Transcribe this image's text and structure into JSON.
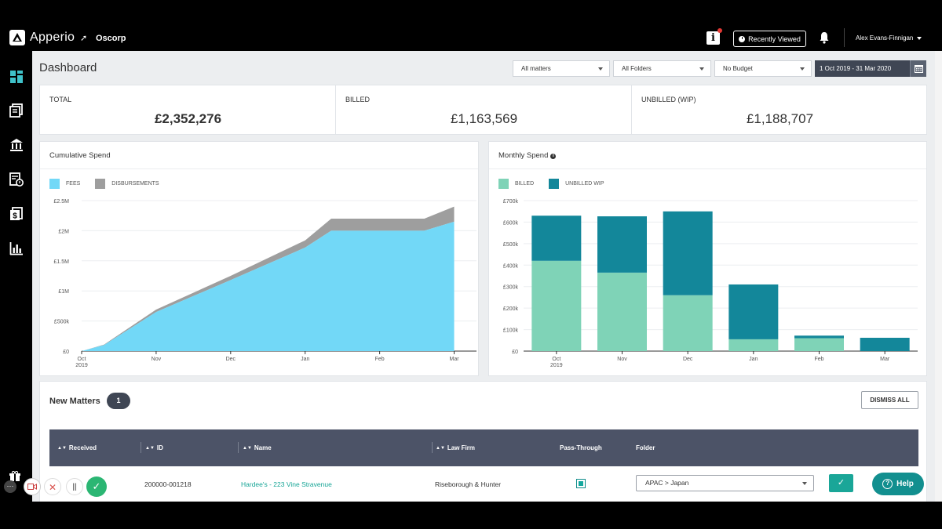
{
  "app": {
    "name": "Apperio",
    "org": "Oscorp"
  },
  "header": {
    "recently_viewed": "Recently Viewed",
    "user_name": "Alex Evans-Finnigan",
    "info_icon": "info-icon",
    "bell_icon": "bell-icon"
  },
  "sidebar": {
    "items": [
      {
        "icon": "dashboard-icon",
        "active": true
      },
      {
        "icon": "documents-icon",
        "active": false
      },
      {
        "icon": "bank-icon",
        "active": false
      },
      {
        "icon": "budget-icon",
        "active": false
      },
      {
        "icon": "invoice-icon",
        "active": false
      },
      {
        "icon": "reports-icon",
        "active": false
      }
    ]
  },
  "page": {
    "title": "Dashboard"
  },
  "filters": {
    "matters": "All matters",
    "folders": "All Folders",
    "budget": "No Budget",
    "date_range": "1 Oct 2019 - 31 Mar 2020"
  },
  "kpis": [
    {
      "label": "TOTAL",
      "value": "£2,352,276"
    },
    {
      "label": "BILLED",
      "value": "£1,163,569"
    },
    {
      "label": "UNBILLED (WIP)",
      "value": "£1,188,707"
    }
  ],
  "cumulative": {
    "title": "Cumulative Spend",
    "legend": [
      "FEES",
      "DISBURSEMENTS"
    ]
  },
  "monthly": {
    "title": "Monthly Spend",
    "legend": [
      "BILLED",
      "UNBILLED WIP"
    ]
  },
  "chart_data": [
    {
      "type": "area",
      "title": "Cumulative Spend",
      "x": [
        "Oct 2019",
        "Nov",
        "Dec",
        "Jan",
        "Feb",
        "Mar"
      ],
      "x_tick_labels": [
        "Oct",
        "Nov",
        "Dec",
        "Jan",
        "Feb",
        "Mar"
      ],
      "x_tick_sublabel": "2019",
      "y_tick_labels": [
        "£0",
        "£500k",
        "£1M",
        "£1.5M",
        "£2M",
        "£2.5M"
      ],
      "ylim": [
        0,
        2500000
      ],
      "stacked": true,
      "series": [
        {
          "name": "FEES",
          "color": "#72d8f7",
          "points": [
            [
              0,
              0
            ],
            [
              0.3,
              100000
            ],
            [
              1,
              650000
            ],
            [
              2,
              1180000
            ],
            [
              3,
              1720000
            ],
            [
              3.35,
              2000000
            ],
            [
              4,
              2000000
            ],
            [
              4.6,
              2000000
            ],
            [
              5,
              2150000
            ]
          ]
        },
        {
          "name": "DISBURSEMENTS",
          "color": "#9e9e9e",
          "points": [
            [
              0,
              0
            ],
            [
              0.3,
              8000
            ],
            [
              1,
              40000
            ],
            [
              2,
              70000
            ],
            [
              3,
              120000
            ],
            [
              3.35,
              200000
            ],
            [
              4,
              200000
            ],
            [
              4.6,
              200000
            ],
            [
              5,
              250000
            ]
          ]
        }
      ],
      "grid": true
    },
    {
      "type": "bar",
      "title": "Monthly Spend",
      "stacked": true,
      "categories": [
        "Oct 2019",
        "Nov",
        "Dec",
        "Jan",
        "Feb",
        "Mar"
      ],
      "x_tick_labels": [
        "Oct",
        "Nov",
        "Dec",
        "Jan",
        "Feb",
        "Mar"
      ],
      "x_tick_sublabel": "2019",
      "y_tick_labels": [
        "£0",
        "£100k",
        "£200k",
        "£300k",
        "£400k",
        "£500k",
        "£600k",
        "£700k"
      ],
      "ylim": [
        0,
        700000
      ],
      "series": [
        {
          "name": "BILLED",
          "color": "#7fd3b7",
          "values": [
            420000,
            365000,
            260000,
            55000,
            60000,
            0
          ]
        },
        {
          "name": "UNBILLED WIP",
          "color": "#13879a",
          "values": [
            210000,
            262000,
            390000,
            255000,
            12000,
            62000
          ]
        }
      ],
      "grid": true
    }
  ],
  "new_matters": {
    "title": "New Matters",
    "count": "1",
    "dismiss_all": "DISMISS ALL",
    "columns": [
      "Received",
      "ID",
      "Name",
      "Law Firm",
      "Pass-Through",
      "Folder"
    ],
    "rows": [
      {
        "id": "200000-001218",
        "name": "Hardee's - 223 Vine Stravenue",
        "law_firm": "Riseborough & Hunter",
        "pass_through": true,
        "folder": "APAC > Japan"
      }
    ]
  },
  "help": {
    "label": "Help"
  },
  "colors": {
    "accent": "#13879a",
    "link": "#16a596",
    "dark": "#3f4654"
  }
}
